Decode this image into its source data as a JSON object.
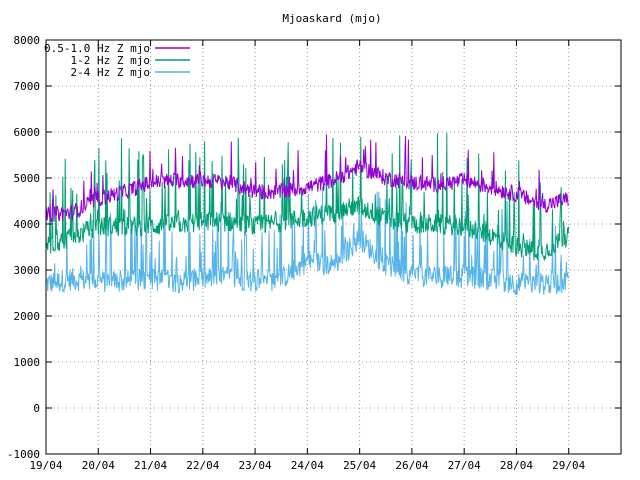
{
  "chart_data": {
    "type": "line",
    "title": "Mjoaskard (mjo)",
    "xlabel": "",
    "ylabel": "",
    "x_ticks": [
      "19/04",
      "20/04",
      "21/04",
      "22/04",
      "23/04",
      "24/04",
      "25/04",
      "26/04",
      "27/04",
      "28/04",
      "29/04"
    ],
    "xlim": [
      "19/04",
      "30/04"
    ],
    "ylim": [
      -1000,
      8000
    ],
    "y_ticks": [
      -1000,
      0,
      1000,
      2000,
      3000,
      4000,
      5000,
      6000,
      7000,
      8000
    ],
    "grid": true,
    "legend_position": "top-left",
    "x_day_offsets": [
      0,
      0.5,
      1,
      1.5,
      2,
      2.5,
      3,
      3.5,
      4,
      4.5,
      5,
      5.5,
      6,
      6.5,
      7,
      7.5,
      8,
      8.5,
      9,
      9.5,
      10
    ],
    "series": [
      {
        "name": "0.5-1.0 Hz Z mjo",
        "color": "#9400d3",
        "values": [
          4200,
          4250,
          4550,
          4700,
          4900,
          4950,
          4950,
          4900,
          4700,
          4700,
          4800,
          4950,
          5250,
          5000,
          4900,
          4850,
          4950,
          4800,
          4650,
          4400,
          4550
        ]
      },
      {
        "name": "1-2 Hz Z mjo",
        "color": "#009e73",
        "values": [
          3550,
          3700,
          3950,
          3950,
          3950,
          4000,
          4050,
          4050,
          3950,
          4050,
          4150,
          4250,
          4400,
          4100,
          4000,
          4000,
          3950,
          3750,
          3500,
          3400,
          3750
        ]
      },
      {
        "name": "2-4 Hz Z mjo",
        "color": "#56b4e9",
        "values": [
          2700,
          2800,
          2750,
          2750,
          2800,
          2750,
          2800,
          2850,
          2750,
          2800,
          3200,
          3100,
          3700,
          3100,
          2900,
          2850,
          2850,
          2800,
          2700,
          2700,
          2750
        ]
      }
    ]
  }
}
